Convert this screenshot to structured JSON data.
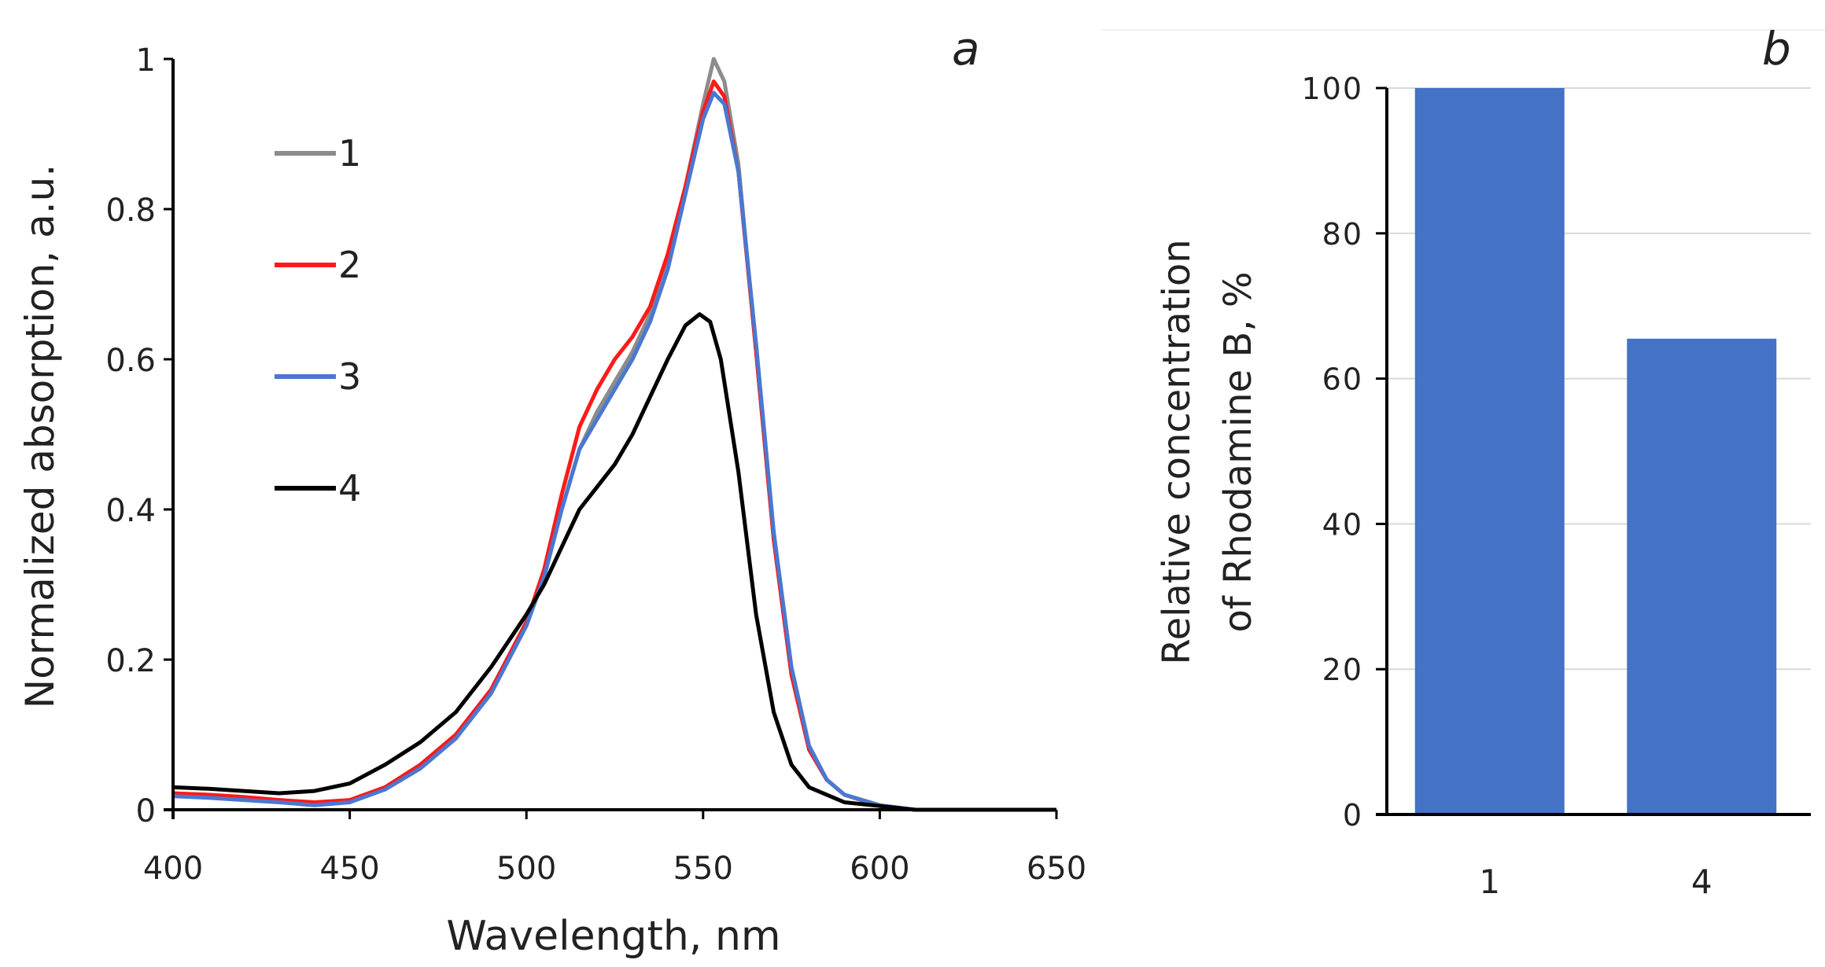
{
  "chart_data": [
    {
      "type": "line",
      "panel_label": "a",
      "xlabel": "Wavelength, nm",
      "ylabel": "Normalized absorption, a.u.",
      "xlim": [
        400,
        650
      ],
      "ylim": [
        0,
        1
      ],
      "xticks": [
        "400",
        "450",
        "500",
        "550",
        "600",
        "650"
      ],
      "yticks": [
        "0",
        "0.2",
        "0.4",
        "0.6",
        "0.8",
        "1"
      ],
      "grid": false,
      "legend_position": "top-left",
      "series": [
        {
          "name": "1",
          "color": "#8c8c8c",
          "x": [
            400,
            410,
            420,
            430,
            440,
            450,
            460,
            470,
            480,
            490,
            500,
            505,
            510,
            515,
            520,
            525,
            530,
            535,
            540,
            545,
            550,
            553,
            556,
            560,
            565,
            570,
            575,
            580,
            585,
            590,
            600,
            610,
            650
          ],
          "y": [
            0.02,
            0.018,
            0.015,
            0.012,
            0.008,
            0.012,
            0.03,
            0.06,
            0.1,
            0.16,
            0.25,
            0.31,
            0.4,
            0.48,
            0.53,
            0.57,
            0.61,
            0.66,
            0.73,
            0.83,
            0.94,
            1.0,
            0.97,
            0.86,
            0.61,
            0.36,
            0.18,
            0.08,
            0.04,
            0.02,
            0.006,
            0,
            0
          ]
        },
        {
          "name": "2",
          "color": "#ff1a1a",
          "x": [
            400,
            410,
            420,
            430,
            440,
            450,
            460,
            470,
            480,
            490,
            500,
            505,
            510,
            515,
            520,
            525,
            530,
            535,
            540,
            545,
            550,
            553,
            556,
            560,
            565,
            570,
            575,
            580,
            585,
            590,
            600,
            610,
            650
          ],
          "y": [
            0.022,
            0.02,
            0.017,
            0.013,
            0.01,
            0.013,
            0.03,
            0.06,
            0.1,
            0.16,
            0.25,
            0.32,
            0.42,
            0.51,
            0.56,
            0.6,
            0.63,
            0.67,
            0.74,
            0.83,
            0.93,
            0.97,
            0.95,
            0.85,
            0.61,
            0.36,
            0.18,
            0.08,
            0.04,
            0.02,
            0.005,
            0,
            0
          ]
        },
        {
          "name": "3",
          "color": "#4a78d0",
          "x": [
            400,
            410,
            420,
            430,
            440,
            450,
            460,
            470,
            480,
            490,
            500,
            505,
            510,
            515,
            520,
            525,
            530,
            535,
            540,
            545,
            550,
            553,
            556,
            560,
            565,
            570,
            575,
            580,
            585,
            590,
            600,
            610,
            650
          ],
          "y": [
            0.018,
            0.016,
            0.013,
            0.01,
            0.006,
            0.01,
            0.027,
            0.055,
            0.095,
            0.155,
            0.245,
            0.31,
            0.4,
            0.48,
            0.52,
            0.56,
            0.6,
            0.65,
            0.72,
            0.82,
            0.92,
            0.955,
            0.94,
            0.85,
            0.62,
            0.37,
            0.19,
            0.085,
            0.04,
            0.02,
            0.006,
            0,
            0
          ]
        },
        {
          "name": "4",
          "color": "#000000",
          "x": [
            400,
            410,
            420,
            430,
            440,
            450,
            460,
            470,
            480,
            490,
            500,
            505,
            510,
            515,
            520,
            525,
            530,
            535,
            540,
            545,
            549,
            552,
            555,
            560,
            565,
            570,
            575,
            580,
            590,
            600,
            610,
            650
          ],
          "y": [
            0.03,
            0.028,
            0.025,
            0.022,
            0.025,
            0.035,
            0.06,
            0.09,
            0.13,
            0.19,
            0.26,
            0.3,
            0.35,
            0.4,
            0.43,
            0.46,
            0.5,
            0.55,
            0.6,
            0.645,
            0.66,
            0.65,
            0.6,
            0.45,
            0.26,
            0.13,
            0.06,
            0.03,
            0.01,
            0.005,
            0,
            0
          ]
        }
      ]
    },
    {
      "type": "bar",
      "panel_label": "b",
      "xlabel": "",
      "ylabel_lines": [
        "Relative concentration",
        "of Rhodamine B, %"
      ],
      "categories": [
        "1",
        "4"
      ],
      "values": [
        100,
        65.5
      ],
      "ylim": [
        0,
        100
      ],
      "yticks": [
        "0",
        "20",
        "40",
        "60",
        "80",
        "100"
      ],
      "grid": true,
      "bar_color": "#4472c4"
    }
  ]
}
